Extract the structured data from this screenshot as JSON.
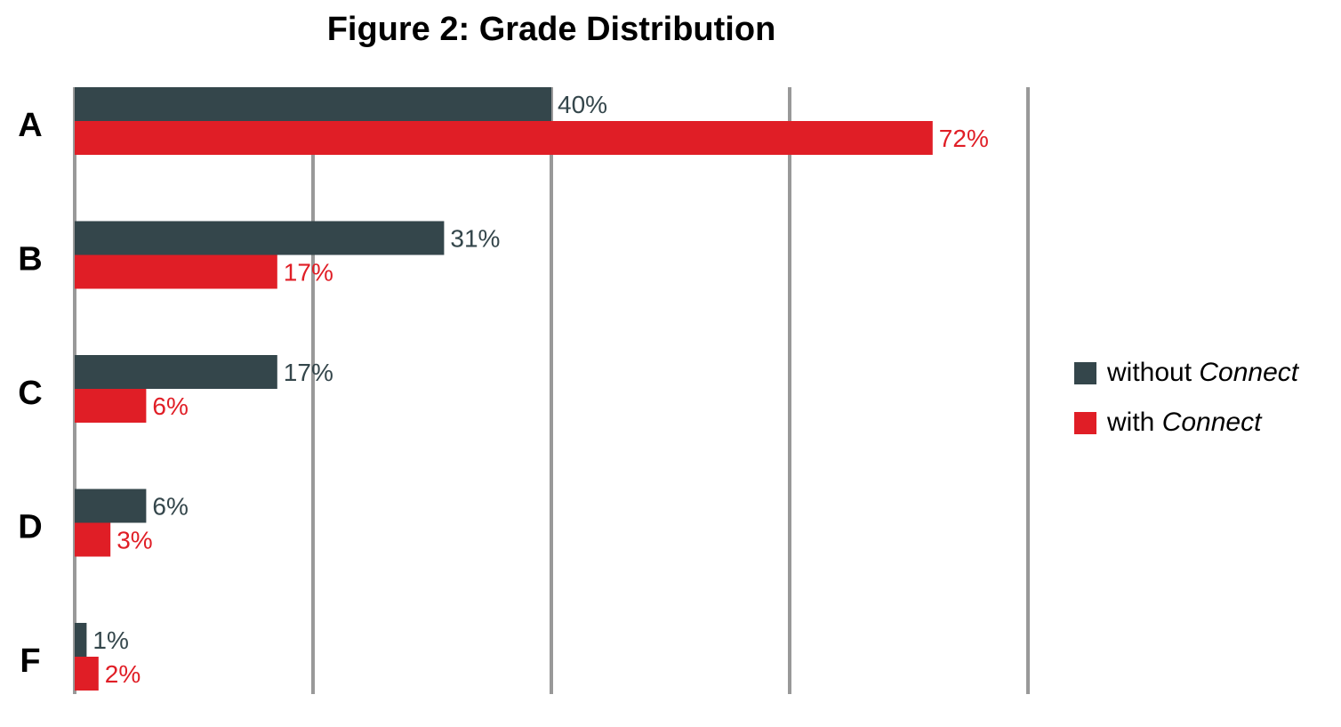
{
  "chart_data": {
    "type": "bar",
    "orientation": "horizontal",
    "title": "Figure 2: Grade Distribution",
    "categories": [
      "A",
      "B",
      "C",
      "D",
      "F"
    ],
    "series": [
      {
        "name": "without Connect",
        "values": [
          40,
          31,
          17,
          6,
          1
        ],
        "labels": [
          "40%",
          "31%",
          "17%",
          "6%",
          "1%"
        ],
        "color": "#34464b"
      },
      {
        "name": "with Connect",
        "values": [
          72,
          17,
          6,
          3,
          2
        ],
        "labels": [
          "72%",
          "17%",
          "6%",
          "3%",
          "2%"
        ],
        "color": "#e01e26"
      }
    ],
    "xlim": [
      0,
      80
    ],
    "grid": true,
    "legend_position": "right",
    "legend": [
      {
        "prefix": "without ",
        "emphasis": "Connect"
      },
      {
        "prefix": "with ",
        "emphasis": "Connect"
      }
    ]
  },
  "colors": {
    "grid": "#999999",
    "axis": "#999999"
  }
}
